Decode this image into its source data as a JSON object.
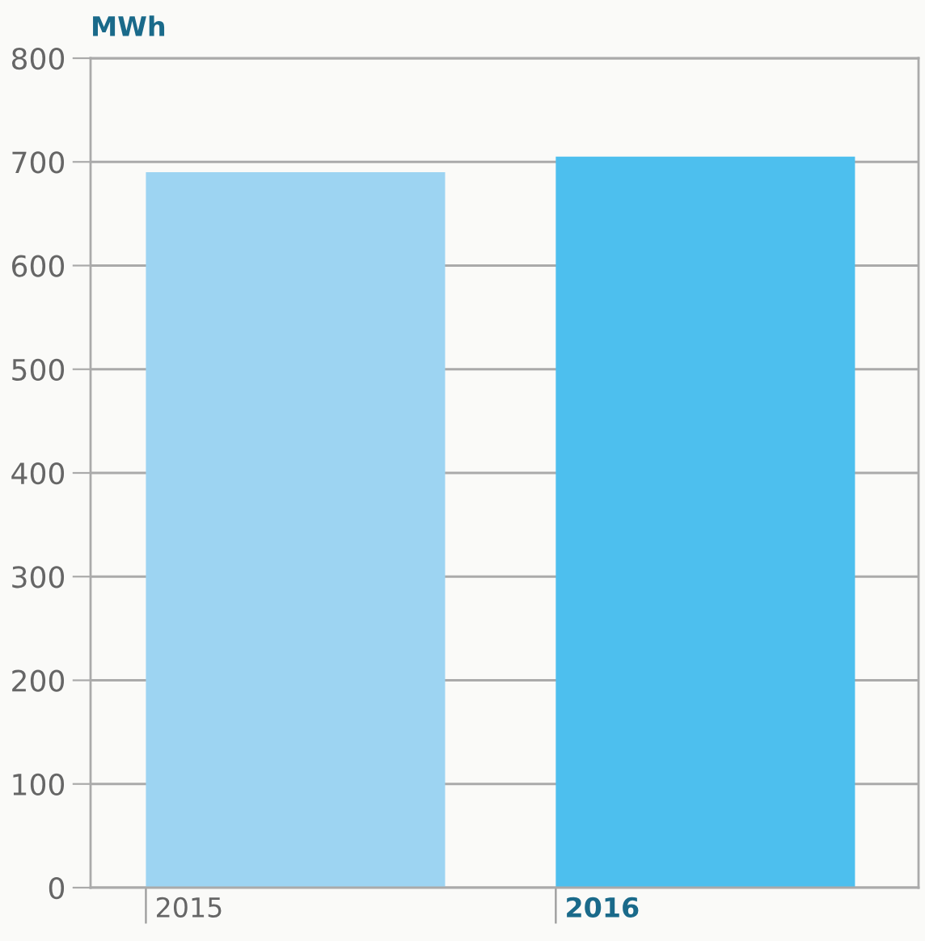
{
  "chart_data": {
    "type": "bar",
    "ylabel": "MWh",
    "categories": [
      "2015",
      "2016"
    ],
    "values": [
      690,
      705
    ],
    "colors": [
      "#9dd4f2",
      "#4dbfee"
    ],
    "ylim": [
      0,
      800
    ],
    "yticks": [
      0,
      100,
      200,
      300,
      400,
      500,
      600,
      700,
      800
    ],
    "grid": "y"
  }
}
